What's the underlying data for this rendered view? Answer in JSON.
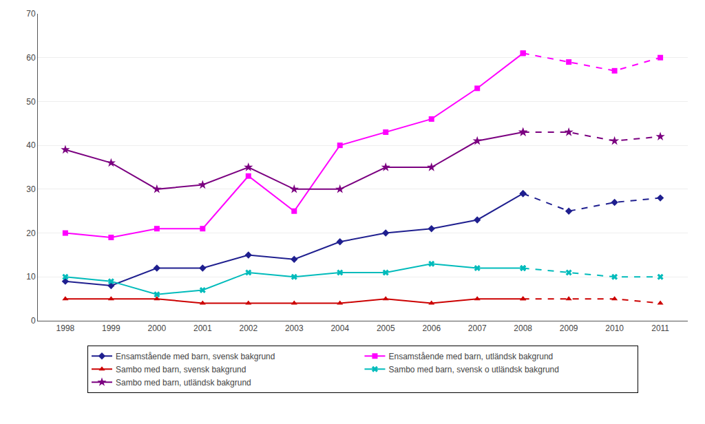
{
  "chart_data": {
    "type": "line",
    "x": [
      1998,
      1999,
      2000,
      2001,
      2002,
      2003,
      2004,
      2005,
      2006,
      2007,
      2008,
      2009,
      2010,
      2011
    ],
    "series": [
      {
        "name": "Ensamstående med barn, svensk bakgrund",
        "color": "#1F1F8F",
        "marker": "diamond",
        "line_style": "solid",
        "values": [
          9,
          8,
          12,
          12,
          15,
          14,
          18,
          20,
          21,
          23,
          29,
          null,
          null,
          null
        ]
      },
      {
        "name": "Ensamstående med barn, svensk bakgrund",
        "color": "#1F1F8F",
        "marker": "diamond",
        "line_style": "dashed",
        "values": [
          null,
          null,
          null,
          null,
          null,
          null,
          null,
          null,
          null,
          null,
          29,
          25,
          27,
          28
        ]
      },
      {
        "name": "Ensamstående med barn, utländsk bakgrund",
        "color": "#FF00FF",
        "marker": "square",
        "line_style": "solid",
        "values": [
          20,
          19,
          21,
          21,
          33,
          25,
          40,
          43,
          46,
          53,
          61,
          null,
          null,
          null
        ]
      },
      {
        "name": "Ensamstående med barn, utländsk bakgrund",
        "color": "#FF00FF",
        "marker": "square",
        "line_style": "dashed",
        "values": [
          null,
          null,
          null,
          null,
          null,
          null,
          null,
          null,
          null,
          null,
          61,
          59,
          57,
          60
        ]
      },
      {
        "name": "Sambo med barn, svensk bakgrund",
        "color": "#CC0000",
        "marker": "triangle-up",
        "line_style": "solid",
        "values": [
          5,
          5,
          5,
          4,
          4,
          4,
          4,
          5,
          4,
          5,
          5,
          null,
          null,
          null
        ]
      },
      {
        "name": "Sambo med barn, svensk bakgrund",
        "color": "#CC0000",
        "marker": "triangle-up",
        "line_style": "dashed",
        "values": [
          null,
          null,
          null,
          null,
          null,
          null,
          null,
          null,
          null,
          null,
          5,
          5,
          5,
          4
        ]
      },
      {
        "name": "Sambo med barn, svensk o utländsk bakgrund",
        "color": "#00BBBB",
        "marker": "x",
        "line_style": "solid",
        "values": [
          10,
          9,
          6,
          7,
          11,
          10,
          11,
          11,
          13,
          12,
          12,
          null,
          null,
          null
        ]
      },
      {
        "name": "Sambo med barn, svensk o utländsk bakgrund",
        "color": "#00BBBB",
        "marker": "x",
        "line_style": "dashed",
        "values": [
          null,
          null,
          null,
          null,
          null,
          null,
          null,
          null,
          null,
          null,
          12,
          11,
          10,
          10
        ]
      },
      {
        "name": "Sambo med barn, utländsk bakgrund",
        "color": "#7B0080",
        "marker": "star",
        "line_style": "solid",
        "values": [
          39,
          36,
          30,
          31,
          35,
          30,
          30,
          35,
          35,
          41,
          43,
          null,
          null,
          null
        ]
      },
      {
        "name": "Sambo med barn, utländsk bakgrund",
        "color": "#7B0080",
        "marker": "star",
        "line_style": "dashed",
        "values": [
          null,
          null,
          null,
          null,
          null,
          null,
          null,
          null,
          null,
          null,
          43,
          43,
          41,
          42
        ]
      }
    ],
    "xlim": [
      1997.4,
      2011.6
    ],
    "xticks": [
      1998,
      1999,
      2000,
      2001,
      2002,
      2003,
      2004,
      2005,
      2006,
      2007,
      2008,
      2009,
      2010,
      2011
    ],
    "ylim": [
      0,
      70
    ],
    "yticks": [
      0,
      10,
      20,
      30,
      40,
      50,
      60,
      70
    ],
    "grid": true,
    "legend": "bottom"
  }
}
